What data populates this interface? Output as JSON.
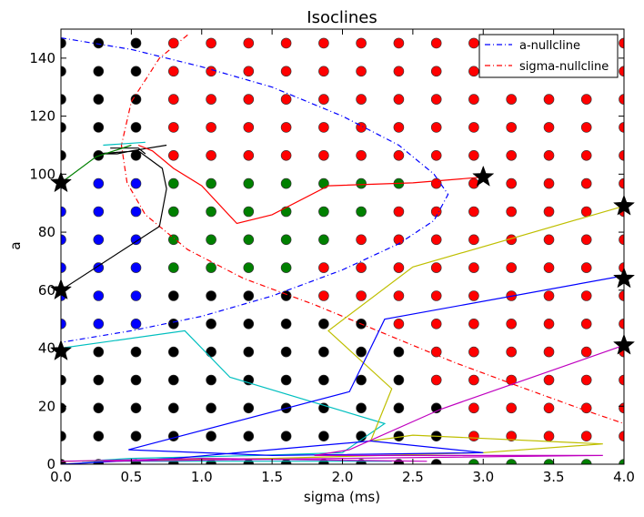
{
  "chart_data": {
    "type": "scatter",
    "title": "Isoclines",
    "xlabel": "sigma (ms)",
    "ylabel": "a",
    "xlim": [
      0,
      4
    ],
    "ylim": [
      0,
      150
    ],
    "xticks": [
      0.0,
      0.5,
      1.0,
      1.5,
      2.0,
      2.5,
      3.0,
      3.5,
      4.0
    ],
    "xtick_labels": [
      "0.0",
      "0.5",
      "1.0",
      "1.5",
      "2.0",
      "2.5",
      "3.0",
      "3.5",
      "4.0"
    ],
    "yticks": [
      0,
      20,
      40,
      60,
      80,
      100,
      120,
      140
    ],
    "ytick_labels": [
      "0",
      "20",
      "40",
      "60",
      "80",
      "100",
      "120",
      "140"
    ],
    "grid": false,
    "legend_position": "top-right",
    "colors": {
      "black": "#000000",
      "blue": "#0000ff",
      "green": "#008000",
      "red": "#ff0000",
      "cyan": "#00bfbf",
      "yellow": "#bfbf00",
      "magenta": "#bf00bf"
    },
    "legend": [
      {
        "label": "a-nullcline",
        "color": "#0000ff"
      },
      {
        "label": "sigma-nullcline",
        "color": "#ff0000"
      }
    ],
    "grid_points": {
      "x": [
        0,
        0.2667,
        0.5333,
        0.8,
        1.0667,
        1.3333,
        1.6,
        1.8667,
        2.1333,
        2.4,
        2.6667,
        2.9333,
        3.2,
        3.4667,
        3.7333,
        4.0
      ],
      "y": [
        0,
        9.6774,
        19.3548,
        29.0323,
        38.7097,
        48.3871,
        58.0645,
        67.7419,
        77.4194,
        87.0968,
        96.7742,
        106.4516,
        116.129,
        125.8065,
        135.4839,
        145.1613
      ],
      "colors_by_row": [
        "KKKKKKKKKKKGGGGG",
        "KKKKKKKKKKKRRRRR",
        "KKKKKKKKKKKRRRRR",
        "KKKKKKKKKKRRRRRR",
        "KKKKKKKKKKRRRRRR",
        "BBBKKKKKKRRRRRRR",
        "BBBKKKKRRRRRRRRR",
        "BBBGGGGRRRRRRRRR",
        "BBBGGGGGRRRRRRRR",
        "BBBGGGGGGRRRRRRR",
        "BBBGGGGGGGRRRRRR",
        "KKKRRRRRRRRRRRRR",
        "KKKRRRRRRRRRRRRR",
        "KKKRRRRRRRRRRRRR",
        "KKKRRRRRRRRRRRRR",
        "KKKRRRRRRRRRRRRR"
      ]
    },
    "nullclines": [
      {
        "name": "a-nullcline",
        "color": "#0000ff",
        "x": [
          0.0,
          0.5,
          1.0,
          1.5,
          2.0,
          2.4,
          2.65,
          2.75,
          2.65,
          2.4,
          2.0,
          1.5,
          1.0,
          0.5,
          0.0
        ],
        "y": [
          147,
          143,
          137,
          130,
          120,
          110,
          100,
          93,
          84,
          76,
          67,
          58,
          51,
          46,
          42
        ]
      },
      {
        "name": "sigma-nullcline",
        "color": "#ff0000",
        "x": [
          0.9,
          0.7,
          0.5,
          0.43,
          0.47,
          0.6,
          0.9,
          1.3,
          1.8,
          2.3,
          2.8,
          3.3,
          3.7,
          4.0
        ],
        "y": [
          148,
          140,
          125,
          110,
          97,
          86,
          74,
          64,
          55,
          45,
          35,
          26,
          19,
          14
        ]
      }
    ],
    "trajectories": [
      {
        "color": "#000000",
        "x": [
          0.75,
          0.5,
          0.4,
          0.25,
          0.55,
          0.72,
          0.75,
          0.7,
          0.0
        ],
        "y": [
          110,
          108,
          107,
          107,
          108,
          102,
          95,
          82,
          60
        ]
      },
      {
        "color": "#000000",
        "x": [
          0.35,
          0.55,
          0.6
        ],
        "y": [
          109,
          109,
          107
        ]
      },
      {
        "color": "#008000",
        "x": [
          0.0,
          0.25,
          0.5
        ],
        "y": [
          97,
          106,
          110
        ]
      },
      {
        "color": "#00bfbf",
        "x": [
          0.3,
          0.6
        ],
        "y": [
          110,
          111
        ]
      },
      {
        "color": "#ff0000",
        "x": [
          0.55,
          0.65,
          0.8,
          1.0,
          1.25,
          1.5,
          1.9,
          2.5,
          3.0
        ],
        "y": [
          110,
          108,
          102,
          96,
          83,
          86,
          96,
          97,
          99
        ]
      },
      {
        "color": "#00bfbf",
        "x": [
          0.0,
          0.88,
          1.2,
          2.3,
          2.0,
          1.4,
          0.5,
          0.15,
          2.35
        ],
        "y": [
          40,
          46,
          30,
          14,
          4,
          3,
          2,
          1,
          1
        ]
      },
      {
        "color": "#bfbf00",
        "x": [
          4.0,
          2.5,
          1.9,
          2.35,
          2.2,
          2.5,
          3.85,
          3.0,
          1.5,
          0.0
        ],
        "y": [
          89,
          68,
          46,
          26,
          8,
          10,
          7,
          4,
          2,
          1
        ]
      },
      {
        "color": "#0000ff",
        "x": [
          4.0,
          2.3,
          2.05,
          0.48,
          1.5,
          3.0,
          2.2,
          0.8,
          0.0
        ],
        "y": [
          65,
          50,
          25,
          5,
          3,
          4,
          8,
          2,
          0
        ]
      },
      {
        "color": "#bf00bf",
        "x": [
          4.0,
          2.7,
          2.05,
          1.8,
          3.85,
          2.0,
          0.3
        ],
        "y": [
          41,
          19,
          5,
          3,
          3,
          2,
          1
        ]
      },
      {
        "color": "#bf00bf",
        "x": [
          0.0,
          1.0,
          2.6
        ],
        "y": [
          1,
          2,
          1
        ]
      }
    ],
    "fixed_points": {
      "x": [
        0.0,
        0.0,
        0.0,
        3.0,
        4.0,
        4.0,
        4.0
      ],
      "y": [
        97,
        60,
        39,
        99,
        89,
        64,
        41
      ]
    }
  }
}
